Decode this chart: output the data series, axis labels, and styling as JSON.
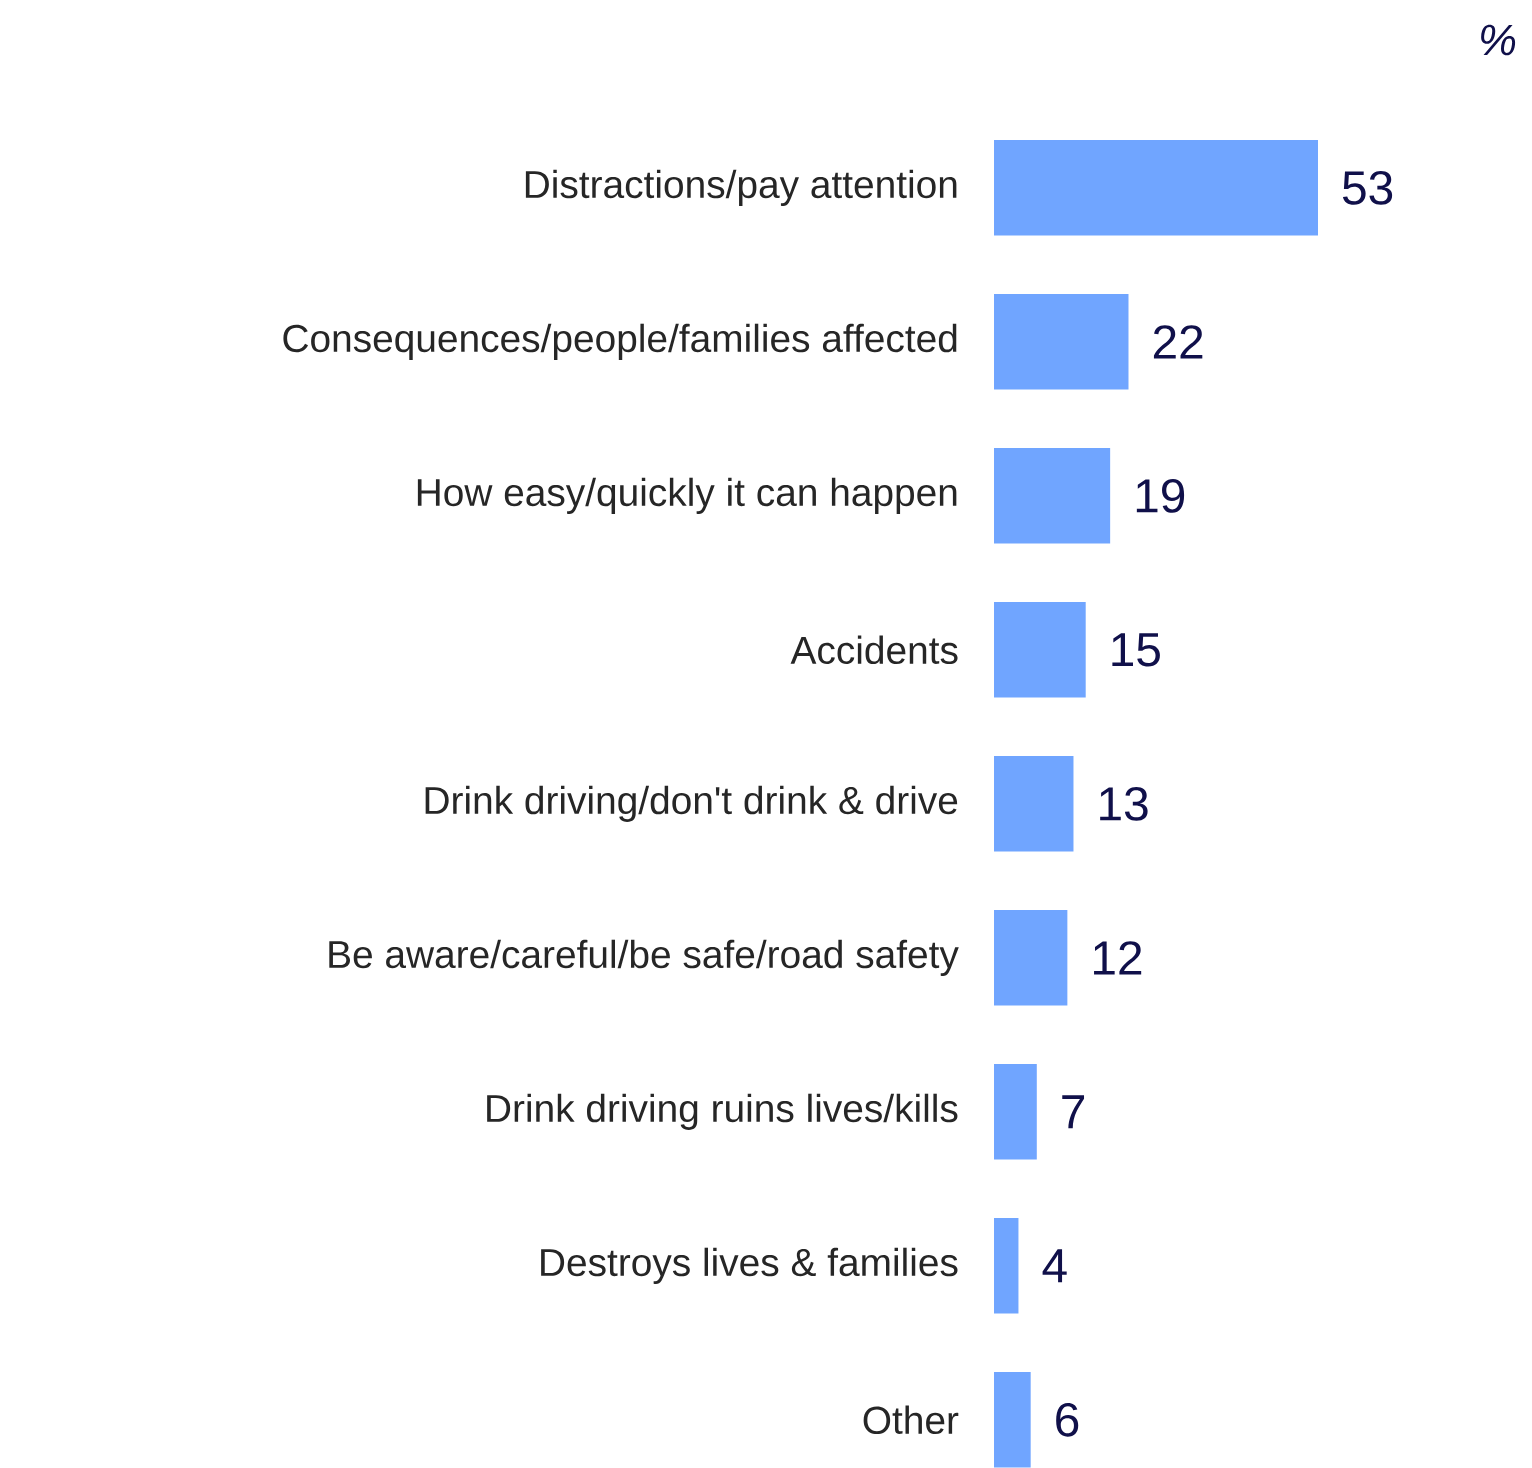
{
  "chart_data": {
    "type": "bar",
    "orientation": "horizontal",
    "xlabel": "%",
    "categories": [
      "Distractions/pay attention",
      "Consequences/people/families affected",
      "How easy/quickly it can happen",
      "Accidents",
      "Drink driving/don't drink & drive",
      "Be aware/careful/be safe/road safety",
      "Drink driving ruins lives/kills",
      "Destroys lives & families",
      "Other"
    ],
    "values": [
      53,
      22,
      19,
      15,
      13,
      12,
      7,
      4,
      6
    ],
    "color": "#70a5ff",
    "data_labels": true
  }
}
